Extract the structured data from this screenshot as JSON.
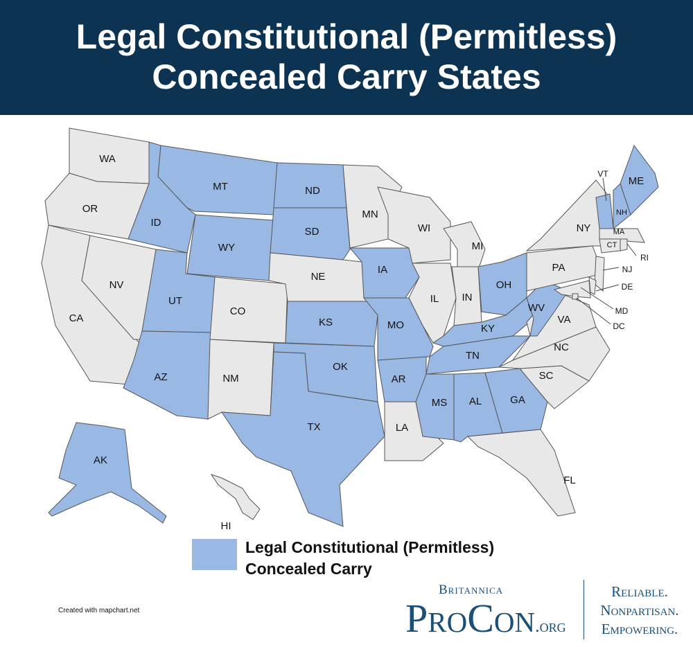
{
  "header": {
    "title_line1": "Legal Constitutional (Permitless)",
    "title_line2": "Concealed Carry States"
  },
  "colors": {
    "header_bg": "#0d3352",
    "permitless": "#9ab8e4",
    "other": "#e8e8e8",
    "border": "#555555"
  },
  "states": [
    {
      "abbr": "WA",
      "permitless": false
    },
    {
      "abbr": "OR",
      "permitless": false
    },
    {
      "abbr": "CA",
      "permitless": false
    },
    {
      "abbr": "NV",
      "permitless": false
    },
    {
      "abbr": "ID",
      "permitless": true
    },
    {
      "abbr": "MT",
      "permitless": true
    },
    {
      "abbr": "WY",
      "permitless": true
    },
    {
      "abbr": "UT",
      "permitless": true
    },
    {
      "abbr": "AZ",
      "permitless": true
    },
    {
      "abbr": "CO",
      "permitless": false
    },
    {
      "abbr": "NM",
      "permitless": false
    },
    {
      "abbr": "ND",
      "permitless": true
    },
    {
      "abbr": "SD",
      "permitless": true
    },
    {
      "abbr": "NE",
      "permitless": false
    },
    {
      "abbr": "KS",
      "permitless": true
    },
    {
      "abbr": "OK",
      "permitless": true
    },
    {
      "abbr": "TX",
      "permitless": true
    },
    {
      "abbr": "MN",
      "permitless": false
    },
    {
      "abbr": "IA",
      "permitless": true
    },
    {
      "abbr": "MO",
      "permitless": true
    },
    {
      "abbr": "AR",
      "permitless": true
    },
    {
      "abbr": "LA",
      "permitless": false
    },
    {
      "abbr": "WI",
      "permitless": false
    },
    {
      "abbr": "MI",
      "permitless": false
    },
    {
      "abbr": "IL",
      "permitless": false
    },
    {
      "abbr": "IN",
      "permitless": false
    },
    {
      "abbr": "OH",
      "permitless": true
    },
    {
      "abbr": "KY",
      "permitless": true
    },
    {
      "abbr": "TN",
      "permitless": true
    },
    {
      "abbr": "MS",
      "permitless": true
    },
    {
      "abbr": "AL",
      "permitless": true
    },
    {
      "abbr": "GA",
      "permitless": true
    },
    {
      "abbr": "FL",
      "permitless": false
    },
    {
      "abbr": "SC",
      "permitless": false
    },
    {
      "abbr": "NC",
      "permitless": false
    },
    {
      "abbr": "VA",
      "permitless": false
    },
    {
      "abbr": "WV",
      "permitless": true
    },
    {
      "abbr": "PA",
      "permitless": false
    },
    {
      "abbr": "NY",
      "permitless": false
    },
    {
      "abbr": "VT",
      "permitless": true
    },
    {
      "abbr": "NH",
      "permitless": true
    },
    {
      "abbr": "ME",
      "permitless": true
    },
    {
      "abbr": "MA",
      "permitless": false
    },
    {
      "abbr": "CT",
      "permitless": false
    },
    {
      "abbr": "RI",
      "permitless": false
    },
    {
      "abbr": "NJ",
      "permitless": false
    },
    {
      "abbr": "DE",
      "permitless": false
    },
    {
      "abbr": "MD",
      "permitless": false
    },
    {
      "abbr": "DC",
      "permitless": false
    },
    {
      "abbr": "AK",
      "permitless": true
    },
    {
      "abbr": "HI",
      "permitless": false
    }
  ],
  "legend": {
    "line1": "Legal Constitutional (Permitless)",
    "line2": "Concealed Carry"
  },
  "credit": "Created with mapchart.net",
  "logo": {
    "britannica": "Britannica",
    "procon": "ProCon",
    "org": ".org",
    "tag1": "Reliable.",
    "tag2": "Nonpartisan.",
    "tag3": "Empowering."
  }
}
